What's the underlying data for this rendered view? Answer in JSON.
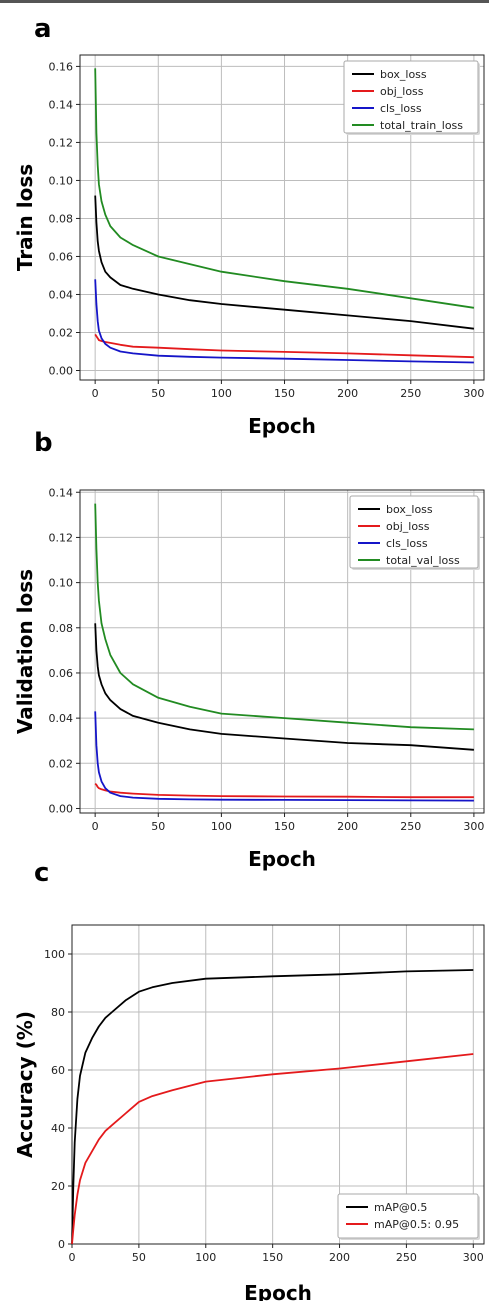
{
  "panels": [
    {
      "letter": "a"
    },
    {
      "letter": "b"
    },
    {
      "letter": "c"
    }
  ],
  "chart_data": [
    {
      "type": "line",
      "xlabel": "Epoch",
      "ylabel": "Train loss",
      "xlim": [
        -12,
        308
      ],
      "ylim": [
        -0.005,
        0.166
      ],
      "xticks": [
        0,
        50,
        100,
        150,
        200,
        250,
        300
      ],
      "yticks": [
        0.0,
        0.02,
        0.04,
        0.06,
        0.08,
        0.1,
        0.12,
        0.14,
        0.16
      ],
      "ytick_decimals": 2,
      "grid": true,
      "legend_position": "top-right",
      "x": [
        0,
        1,
        2,
        3,
        5,
        8,
        12,
        20,
        30,
        50,
        75,
        100,
        150,
        200,
        250,
        300
      ],
      "series": [
        {
          "name": "box_loss",
          "color": "#000000",
          "values": [
            0.092,
            0.078,
            0.068,
            0.063,
            0.057,
            0.052,
            0.049,
            0.045,
            0.043,
            0.04,
            0.037,
            0.035,
            0.032,
            0.029,
            0.026,
            0.022
          ]
        },
        {
          "name": "obj_loss",
          "color": "#e41a1c",
          "values": [
            0.019,
            0.018,
            0.017,
            0.016,
            0.0155,
            0.015,
            0.0145,
            0.0135,
            0.0125,
            0.012,
            0.0112,
            0.0105,
            0.0098,
            0.009,
            0.008,
            0.007
          ]
        },
        {
          "name": "cls_loss",
          "color": "#1515c8",
          "values": [
            0.048,
            0.035,
            0.026,
            0.021,
            0.017,
            0.014,
            0.012,
            0.01,
            0.009,
            0.0078,
            0.0072,
            0.0068,
            0.0062,
            0.0055,
            0.0048,
            0.0042
          ]
        },
        {
          "name": "total_train_loss",
          "color": "#228b22",
          "values": [
            0.159,
            0.125,
            0.108,
            0.098,
            0.089,
            0.082,
            0.076,
            0.07,
            0.066,
            0.06,
            0.056,
            0.052,
            0.047,
            0.043,
            0.038,
            0.033
          ]
        }
      ]
    },
    {
      "type": "line",
      "xlabel": "Epoch",
      "ylabel": "Validation loss",
      "xlim": [
        -12,
        308
      ],
      "ylim": [
        -0.002,
        0.141
      ],
      "xticks": [
        0,
        50,
        100,
        150,
        200,
        250,
        300
      ],
      "yticks": [
        0.0,
        0.02,
        0.04,
        0.06,
        0.08,
        0.1,
        0.12,
        0.14
      ],
      "ytick_decimals": 2,
      "grid": true,
      "legend_position": "top-right",
      "x": [
        0,
        1,
        2,
        3,
        5,
        8,
        12,
        20,
        30,
        50,
        75,
        100,
        150,
        200,
        250,
        300
      ],
      "series": [
        {
          "name": "box_loss",
          "color": "#000000",
          "values": [
            0.082,
            0.07,
            0.063,
            0.059,
            0.055,
            0.051,
            0.048,
            0.044,
            0.041,
            0.038,
            0.035,
            0.033,
            0.031,
            0.029,
            0.028,
            0.026
          ]
        },
        {
          "name": "obj_loss",
          "color": "#e41a1c",
          "values": [
            0.011,
            0.0105,
            0.0095,
            0.009,
            0.0085,
            0.008,
            0.0075,
            0.007,
            0.0066,
            0.006,
            0.0057,
            0.0055,
            0.0053,
            0.0052,
            0.005,
            0.005
          ]
        },
        {
          "name": "cls_loss",
          "color": "#1515c8",
          "values": [
            0.043,
            0.028,
            0.02,
            0.016,
            0.012,
            0.009,
            0.007,
            0.0055,
            0.0048,
            0.0043,
            0.004,
            0.0039,
            0.0038,
            0.0037,
            0.0036,
            0.0035
          ]
        },
        {
          "name": "total_val_loss",
          "color": "#228b22",
          "values": [
            0.135,
            0.115,
            0.1,
            0.092,
            0.082,
            0.075,
            0.068,
            0.06,
            0.055,
            0.049,
            0.045,
            0.042,
            0.04,
            0.038,
            0.036,
            0.035
          ]
        }
      ]
    },
    {
      "type": "line",
      "xlabel": "Epoch",
      "ylabel": "Accuracy (%)",
      "xlim": [
        0,
        308
      ],
      "ylim": [
        0,
        110
      ],
      "xticks": [
        0,
        50,
        100,
        150,
        200,
        250,
        300
      ],
      "yticks": [
        0,
        20,
        40,
        60,
        80,
        100
      ],
      "ytick_decimals": 0,
      "grid": true,
      "legend_position": "bottom-right",
      "x": [
        0,
        1,
        2,
        4,
        6,
        8,
        10,
        15,
        20,
        25,
        30,
        40,
        50,
        60,
        75,
        100,
        150,
        200,
        250,
        300
      ],
      "series": [
        {
          "name": "mAP@0.5",
          "color": "#000000",
          "values": [
            0,
            20,
            35,
            50,
            58,
            62,
            66,
            71,
            75,
            78,
            80,
            84,
            87,
            88.5,
            90,
            91.5,
            92.3,
            93,
            94,
            94.5
          ]
        },
        {
          "name": "mAP@0.5: 0.95",
          "color": "#e41a1c",
          "values": [
            0,
            5,
            10,
            17,
            22,
            25,
            28,
            32,
            36,
            39,
            41,
            45,
            49,
            51,
            53,
            56,
            58.5,
            60.5,
            63,
            65.5
          ]
        }
      ]
    }
  ]
}
